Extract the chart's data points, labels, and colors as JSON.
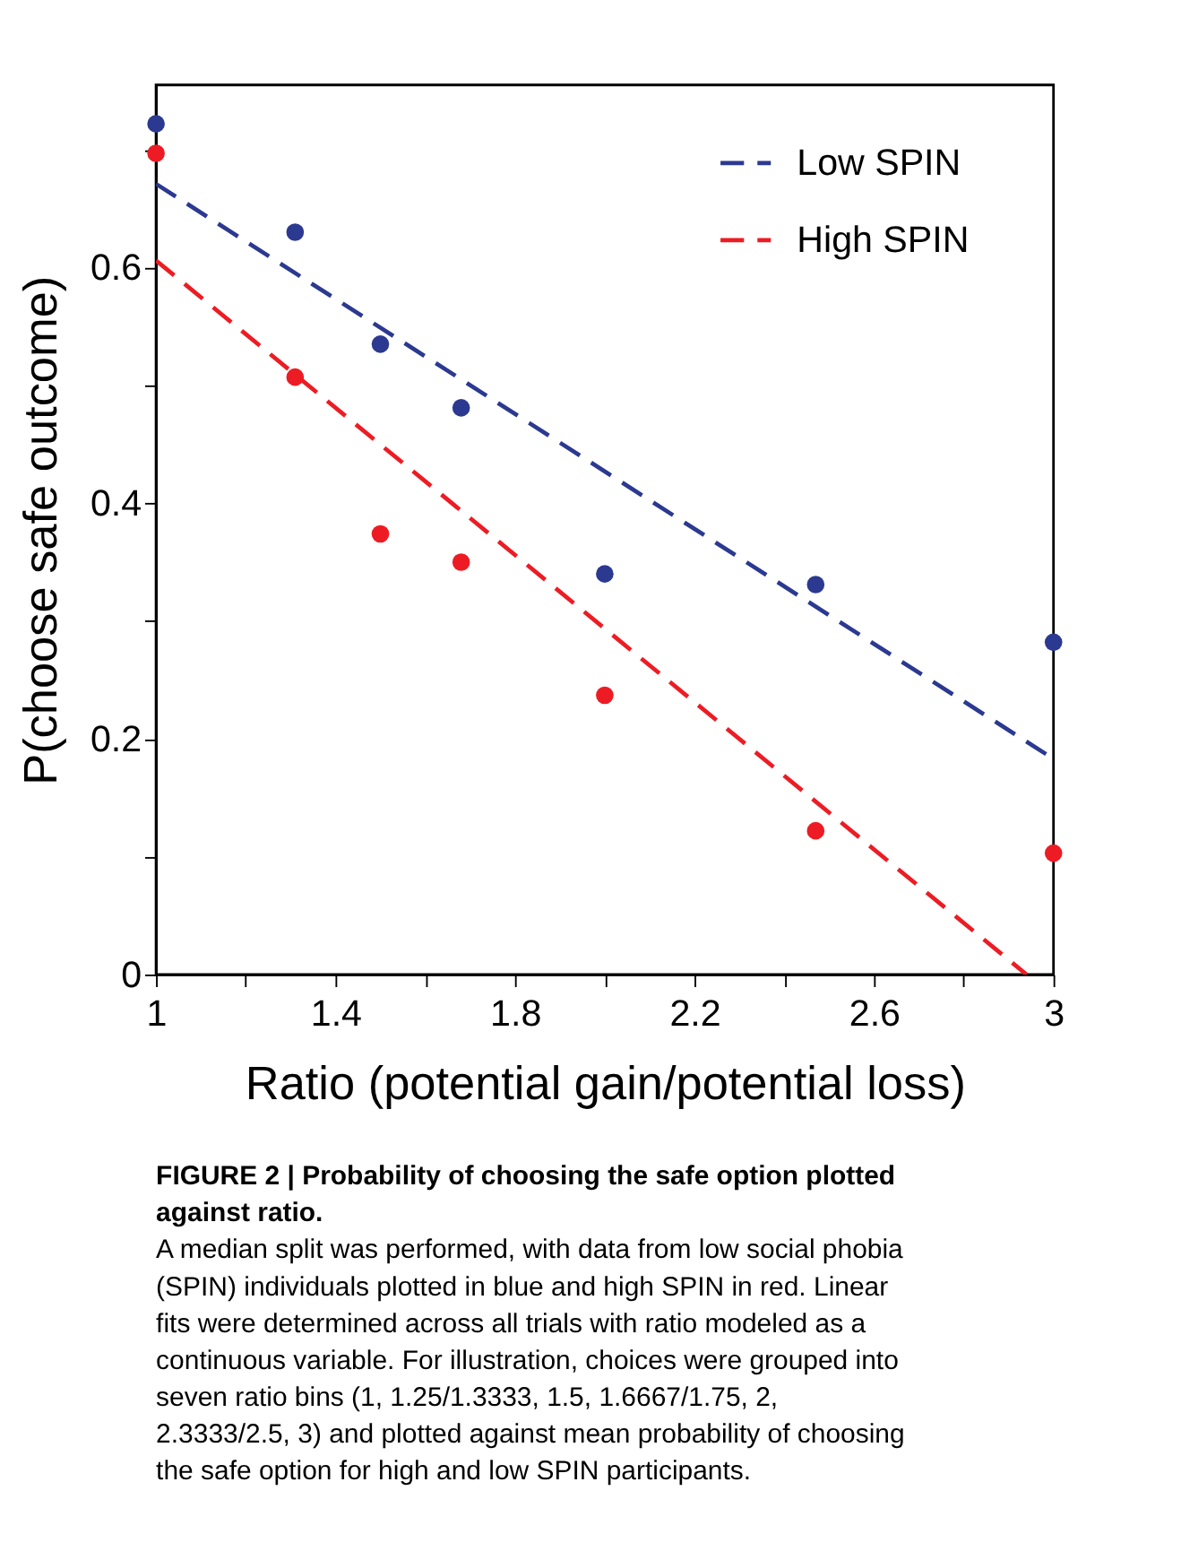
{
  "chart_data": {
    "type": "scatter",
    "xlabel": "Ratio (potential gain/potential loss)",
    "ylabel": "P(choose safe outcome)",
    "xlim": [
      1,
      3
    ],
    "xticks": [
      1,
      {
        "value": 1.2,
        "label": null
      },
      1.4,
      {
        "value": 1.6,
        "label": null
      },
      1.8,
      {
        "value": 2.0,
        "label": null
      },
      2.2,
      {
        "value": 2.4,
        "label": null
      },
      2.6,
      {
        "value": 2.8,
        "label": null
      },
      3
    ],
    "ylim": [
      0,
      0.755
    ],
    "yticks": [
      0,
      {
        "value": 0.1,
        "label": null
      },
      0.2,
      {
        "value": 0.3,
        "label": null
      },
      0.4,
      {
        "value": 0.5,
        "label": null
      },
      0.6,
      {
        "value": 0.7,
        "label": null
      }
    ],
    "grid": false,
    "legend": "top right",
    "series": [
      {
        "name": "Low SPIN",
        "color": "#2b3990",
        "type": "line",
        "line_style": "dashed",
        "x": [
          1,
          3
        ],
        "values": [
          0.671,
          0.183
        ]
      },
      {
        "name": "High SPIN",
        "color": "#ed1c24",
        "type": "line",
        "line_style": "dashed",
        "x": [
          1,
          2.94
        ],
        "values": [
          0.606,
          0.0
        ]
      },
      {
        "color": "#2b3990",
        "marker": "circle",
        "x": [
          1,
          1.31,
          1.5,
          1.68,
          2,
          2.47,
          3
        ],
        "values": [
          0.722,
          0.63,
          0.535,
          0.481,
          0.34,
          0.331,
          0.282
        ]
      },
      {
        "color": "#ed1c24",
        "marker": "circle",
        "x": [
          1,
          1.31,
          1.5,
          1.68,
          2,
          2.47,
          3
        ],
        "values": [
          0.697,
          0.507,
          0.374,
          0.35,
          0.237,
          0.122,
          0.103
        ]
      }
    ],
    "annotations": [
      "FIGURE 2 | Probability of choosing the safe option plotted against ratio.",
      "A median split was performed, with data from low social phobia (SPIN) individuals plotted in blue and high SPIN in red. Linear fits were determined across all trials with ratio modeled as a continuous variable. For illustration, choices were grouped into seven ratio bins (1, 1.25/1.3333, 1.5, 1.6667/1.75, 2, 2.3333/2.5, 3) and plotted against mean probability of choosing the safe option for high and low SPIN participants."
    ]
  }
}
